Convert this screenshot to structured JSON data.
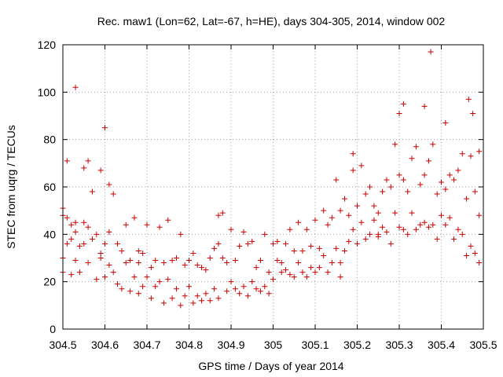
{
  "chart_data": {
    "type": "scatter",
    "title": "Rec. maw1 (Lon=62, Lat=-67, h=HE), days 304-305, 2014, window 002",
    "xlabel": "GPS time / Days of year 2014",
    "ylabel": "STEC from uqrg / TECUs",
    "xlim": [
      304.5,
      305.5
    ],
    "ylim": [
      0,
      120
    ],
    "x_ticks": [
      304.5,
      304.6,
      304.7,
      304.8,
      304.9,
      305.0,
      305.1,
      305.2,
      305.3,
      305.4,
      305.5
    ],
    "x_tick_labels": [
      "304.5",
      "304.6",
      "304.7",
      "304.8",
      "304.9",
      "305",
      "305.1",
      "305.2",
      "305.3",
      "305.4",
      "305.5"
    ],
    "y_ticks": [
      0,
      20,
      40,
      60,
      80,
      100,
      120
    ],
    "y_tick_labels": [
      "0",
      "20",
      "40",
      "60",
      "80",
      "100",
      "120"
    ],
    "grid": true,
    "marker": "plus",
    "color": "#cc0000",
    "series": [
      {
        "x": [
          304.5,
          304.5,
          304.5,
          304.5,
          304.51,
          304.51,
          304.51,
          304.52,
          304.52,
          304.52,
          304.53,
          304.53,
          304.53,
          304.54,
          304.54,
          304.55,
          304.55,
          304.55,
          304.56,
          304.56,
          304.56,
          304.57,
          304.57,
          304.58,
          304.58,
          304.59,
          304.59,
          304.6,
          304.6,
          304.6,
          304.61,
          304.61,
          304.62,
          304.62,
          304.63,
          304.63,
          304.64,
          304.64,
          304.65,
          304.65,
          304.66,
          304.66,
          304.67,
          304.67,
          304.68,
          304.68,
          304.69,
          304.69,
          304.7,
          304.7,
          304.71,
          304.71,
          304.72,
          304.72,
          304.73,
          304.73,
          304.74,
          304.74,
          304.75,
          304.75,
          304.76,
          304.76,
          304.77,
          304.77,
          304.78,
          304.78,
          304.79,
          304.79,
          304.8,
          304.8,
          304.81,
          304.81,
          304.82,
          304.82,
          304.83,
          304.83,
          304.84,
          304.84,
          304.85,
          304.85,
          304.86,
          304.86,
          304.87,
          304.87,
          304.88,
          304.88,
          304.89,
          304.89,
          304.9,
          304.9,
          304.91,
          304.91,
          304.92,
          304.92,
          304.93,
          304.93,
          304.94,
          304.94,
          304.95,
          304.95,
          304.96,
          304.96,
          304.97,
          304.97,
          304.98,
          304.98,
          304.99,
          304.99,
          305.0,
          305.0,
          305.01,
          305.01,
          305.02,
          305.02,
          305.03,
          305.03,
          305.04,
          305.04,
          305.05,
          305.05,
          305.06,
          305.06,
          305.07,
          305.07,
          305.08,
          305.08,
          305.09,
          305.09,
          305.1,
          305.1,
          305.11,
          305.11,
          305.12,
          305.12,
          305.13,
          305.13,
          305.14,
          305.14,
          305.15,
          305.15,
          305.16,
          305.16,
          305.17,
          305.17,
          305.18,
          305.18,
          305.19,
          305.19,
          305.2,
          305.2,
          305.21,
          305.21,
          305.22,
          305.22,
          305.23,
          305.23,
          305.24,
          305.24,
          305.25,
          305.25,
          305.26,
          305.26,
          305.27,
          305.27,
          305.28,
          305.28,
          305.29,
          305.29,
          305.3,
          305.3,
          305.31,
          305.31,
          305.32,
          305.32,
          305.33,
          305.33,
          305.34,
          305.34,
          305.35,
          305.35,
          305.36,
          305.36,
          305.37,
          305.37,
          305.38,
          305.38,
          305.39,
          305.39,
          305.4,
          305.4,
          305.41,
          305.41,
          305.42,
          305.42,
          305.43,
          305.43,
          305.44,
          305.44,
          305.45,
          305.45,
          305.46,
          305.46,
          305.47,
          305.47,
          305.48,
          305.48,
          305.49,
          305.49,
          304.53,
          304.59,
          304.61,
          304.68,
          304.87,
          305.16,
          305.19,
          305.25,
          305.3,
          305.31,
          305.36,
          305.375,
          305.41,
          305.465,
          305.475,
          305.49
        ],
        "y": [
          51,
          48,
          30,
          24,
          47,
          36,
          71,
          44,
          38,
          23,
          41,
          29,
          102,
          35,
          24,
          45,
          36,
          68,
          43,
          28,
          71,
          58,
          38,
          21,
          40,
          32,
          67,
          36,
          22,
          85,
          41,
          27,
          57,
          24,
          36,
          19,
          33,
          17,
          44,
          28,
          29,
          16,
          47,
          22,
          28,
          15,
          32,
          18,
          44,
          22,
          26,
          13,
          29,
          18,
          43,
          20,
          28,
          11,
          46,
          21,
          29,
          13,
          30,
          17,
          40,
          10,
          27,
          14,
          29,
          18,
          32,
          11,
          27,
          14,
          26,
          12,
          25,
          15,
          30,
          12,
          34,
          17,
          36,
          13,
          30,
          49,
          28,
          16,
          42,
          20,
          29,
          17,
          35,
          15,
          41,
          18,
          36,
          14,
          37,
          20,
          26,
          17,
          29,
          16,
          40,
          18,
          24,
          15,
          36,
          21,
          37,
          29,
          28,
          24,
          36,
          25,
          42,
          23,
          33,
          22,
          45,
          28,
          33,
          24,
          42,
          22,
          35,
          26,
          46,
          24,
          34,
          26,
          50,
          31,
          44,
          24,
          47,
          28,
          63,
          34,
          50,
          28,
          55,
          33,
          48,
          37,
          74,
          42,
          52,
          36,
          69,
          45,
          57,
          38,
          60,
          40,
          52,
          46,
          49,
          40,
          58,
          43,
          63,
          41,
          60,
          36,
          78,
          49,
          65,
          43,
          63,
          42,
          58,
          40,
          72,
          49,
          77,
          42,
          61,
          44,
          65,
          45,
          71,
          43,
          78,
          44,
          57,
          38,
          48,
          62,
          59,
          44,
          47,
          65,
          63,
          38,
          67,
          42,
          74,
          40,
          55,
          31,
          73,
          35,
          58,
          32,
          48,
          28,
          45,
          30,
          61,
          33,
          48,
          22,
          67,
          39,
          91,
          95,
          94,
          117,
          87,
          97,
          91,
          75
        ]
      }
    ]
  }
}
